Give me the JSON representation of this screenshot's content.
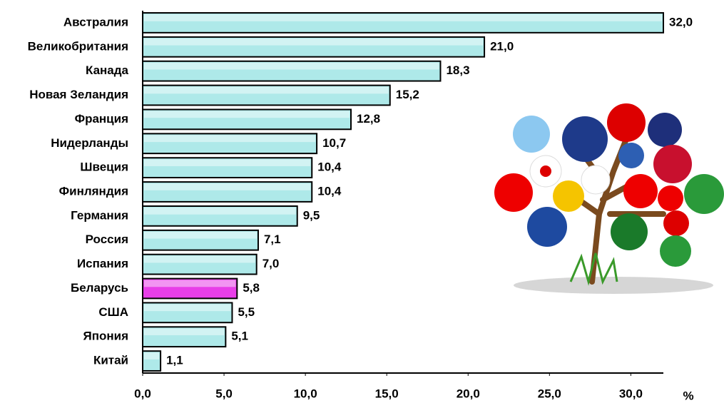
{
  "chart_data": {
    "type": "hbar",
    "categories": [
      "Австралия",
      "Великобритания",
      "Канада",
      "Новая Зеландия",
      "Франция",
      "Нидерланды",
      "Швеция",
      "Финляндия",
      "Германия",
      "Россия",
      "Испания",
      "Беларусь",
      "США",
      "Япония",
      "Китай"
    ],
    "values": [
      32.0,
      21.0,
      18.3,
      15.2,
      12.8,
      10.7,
      10.4,
      10.4,
      9.5,
      7.1,
      7.0,
      5.8,
      5.5,
      5.1,
      1.1
    ],
    "value_labels": [
      "32,0",
      "21,0",
      "18,3",
      "15,2",
      "12,8",
      "10,7",
      "10,4",
      "10,4",
      "9,5",
      "7,1",
      "7,0",
      "5,8",
      "5,5",
      "5,1",
      "1,1"
    ],
    "colors": [
      "#aee9e9",
      "#aee9e9",
      "#aee9e9",
      "#aee9e9",
      "#aee9e9",
      "#aee9e9",
      "#aee9e9",
      "#aee9e9",
      "#aee9e9",
      "#aee9e9",
      "#aee9e9",
      "#e83ee8",
      "#aee9e9",
      "#aee9e9",
      "#aee9e9"
    ],
    "xlim": [
      0,
      32
    ],
    "xticks": [
      {
        "value": 0,
        "label": "0,0"
      },
      {
        "value": 5,
        "label": "5,0"
      },
      {
        "value": 10,
        "label": "10,0"
      },
      {
        "value": 15,
        "label": "15,0"
      },
      {
        "value": 20,
        "label": "20,0"
      },
      {
        "value": 25,
        "label": "25,0"
      },
      {
        "value": 30,
        "label": "30,0"
      }
    ],
    "x_label": "%"
  }
}
